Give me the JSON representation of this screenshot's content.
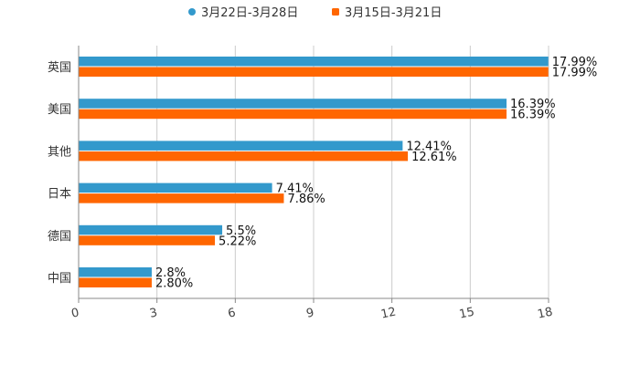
{
  "chart_data": {
    "type": "bar",
    "orientation": "horizontal",
    "categories": [
      "英国",
      "美国",
      "其他",
      "日本",
      "德国",
      "中国"
    ],
    "series": [
      {
        "name": "3月22日-3月28日",
        "color": "#3399cc",
        "values": [
          17.99,
          16.39,
          12.41,
          7.41,
          5.5,
          2.8
        ],
        "labels": [
          "17.99%",
          "16.39%",
          "12.41%",
          "7.41%",
          "5.5%",
          "2.8%"
        ]
      },
      {
        "name": "3月15日-3月21日",
        "color": "#ff6600",
        "values": [
          17.99,
          16.39,
          12.61,
          7.86,
          5.22,
          2.8
        ],
        "labels": [
          "17.99%",
          "16.39%",
          "12.61%",
          "7.86%",
          "5.22%",
          "2.80%"
        ]
      }
    ],
    "xlim": [
      0,
      18
    ],
    "xticks": [
      0,
      3,
      6,
      9,
      12,
      15,
      18
    ],
    "xtick_labels": [
      "0",
      "3",
      "6",
      "9",
      "12",
      "15",
      "18"
    ],
    "grid": true,
    "legend": "top-center",
    "title": "",
    "xlabel": "",
    "ylabel": ""
  }
}
